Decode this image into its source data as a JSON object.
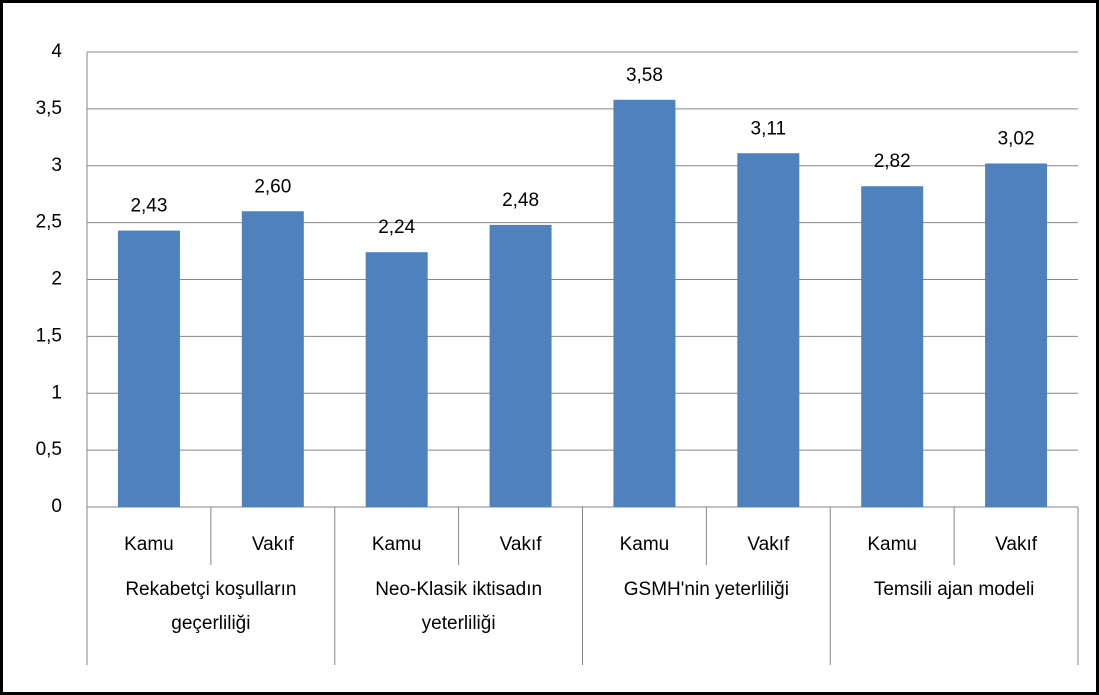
{
  "chart_data": {
    "type": "bar",
    "categories": [
      "Kamu",
      "Vakıf",
      "Kamu",
      "Vakıf",
      "Kamu",
      "Vakıf",
      "Kamu",
      "Vakıf"
    ],
    "groups": [
      "Rekabetçi koşulların geçerliliği",
      "Neo-Klasik iktisadın yeterliliği",
      "GSMH'nin yeterliliği",
      "Temsili ajan modeli"
    ],
    "values": [
      2.43,
      2.6,
      2.24,
      2.48,
      3.58,
      3.11,
      2.82,
      3.02
    ],
    "value_labels": [
      "2,43",
      "2,60",
      "2,24",
      "2,48",
      "3,58",
      "3,11",
      "2,82",
      "3,02"
    ],
    "color": "#4f81bd",
    "ylim": [
      0,
      4
    ],
    "yticks": [
      0,
      {
        "value": 0.5,
        "label": "0,5"
      },
      1,
      {
        "value": 1.5,
        "label": "1,5"
      },
      2,
      {
        "value": 2.5,
        "label": "2,5"
      },
      3,
      {
        "value": 3.5,
        "label": "3,5"
      },
      4
    ],
    "grid": true
  }
}
